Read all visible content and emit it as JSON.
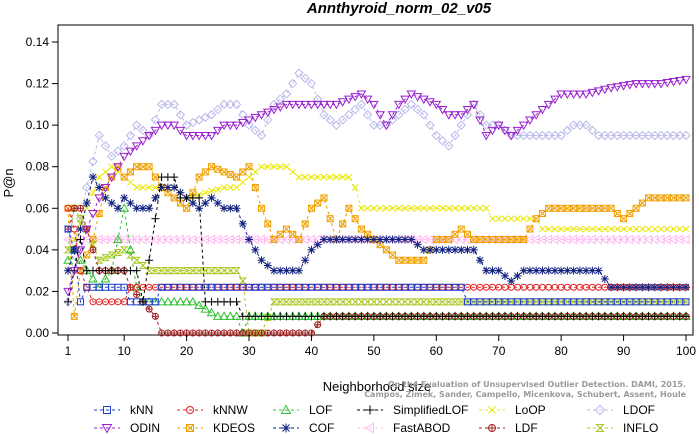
{
  "chart_data": {
    "type": "line",
    "title": "Annthyroid_norm_02_v05",
    "xlabel": "Neighborhood size",
    "ylabel": "P@n",
    "xlim": [
      0,
      100
    ],
    "ylim": [
      0,
      0.14
    ],
    "x_ticks": [
      1,
      10,
      20,
      30,
      40,
      50,
      60,
      70,
      80,
      90,
      100
    ],
    "y_ticks": [
      0.0,
      0.02,
      0.04,
      0.06,
      0.08,
      0.1,
      0.12,
      0.14
    ],
    "y_tick_labels": [
      "0.00",
      "0.02",
      "0.04",
      "0.06",
      "0.08",
      "0.10",
      "0.12",
      "0.14"
    ],
    "grid": false,
    "legend_position": "bottom",
    "credit": "Campos, Zimek, Sander, Campello, Micenkova, Schubert, Assent, Houle\nOn the Evaluation of Unsupervised Outlier Detection. DAMI, 2015.",
    "series": [
      {
        "name": "kNN",
        "color": "#1f3fd0",
        "marker": "square",
        "points": [
          [
            1,
            0.05
          ],
          [
            2,
            0.04
          ],
          [
            3,
            0.015
          ],
          [
            4,
            0.022
          ],
          [
            10,
            0.022
          ],
          [
            11,
            0.015
          ],
          [
            15,
            0.015
          ],
          [
            16,
            0.022
          ],
          [
            64,
            0.022
          ],
          [
            65,
            0.015
          ],
          [
            100,
            0.015
          ]
        ]
      },
      {
        "name": "kNNW",
        "color": "#e02020",
        "marker": "circle",
        "points": [
          [
            1,
            0.06
          ],
          [
            2,
            0.05
          ],
          [
            3,
            0.03
          ],
          [
            4,
            0.022
          ],
          [
            5,
            0.015
          ],
          [
            10,
            0.015
          ],
          [
            11,
            0.022
          ],
          [
            15,
            0.022
          ],
          [
            16,
            0.022
          ],
          [
            64,
            0.022
          ],
          [
            65,
            0.022
          ],
          [
            100,
            0.022
          ]
        ]
      },
      {
        "name": "LOF",
        "color": "#30c030",
        "marker": "triangle",
        "points": [
          [
            1,
            0.035
          ],
          [
            2,
            0.04
          ],
          [
            4,
            0.03
          ],
          [
            6,
            0.022
          ],
          [
            8,
            0.03
          ],
          [
            10,
            0.06
          ],
          [
            11,
            0.04
          ],
          [
            12,
            0.022
          ],
          [
            13,
            0.015
          ],
          [
            14,
            0.015
          ],
          [
            20,
            0.015
          ],
          [
            21,
            0.015
          ],
          [
            25,
            0.008
          ],
          [
            28,
            0.008
          ],
          [
            29,
            0.0
          ],
          [
            30,
            0.008
          ],
          [
            40,
            0.008
          ],
          [
            100,
            0.008
          ]
        ]
      },
      {
        "name": "SimplifiedLOF",
        "color": "#000000",
        "marker": "plus",
        "points": [
          [
            1,
            0.015
          ],
          [
            2,
            0.03
          ],
          [
            3,
            0.045
          ],
          [
            4,
            0.03
          ],
          [
            6,
            0.03
          ],
          [
            12,
            0.03
          ],
          [
            13,
            0.015
          ],
          [
            16,
            0.075
          ],
          [
            18,
            0.075
          ],
          [
            19,
            0.065
          ],
          [
            22,
            0.065
          ],
          [
            23,
            0.015
          ],
          [
            28,
            0.015
          ],
          [
            29,
            0.008
          ],
          [
            33,
            0.008
          ],
          [
            34,
            0.008
          ],
          [
            72,
            0.008
          ],
          [
            73,
            0.008
          ],
          [
            100,
            0.008
          ]
        ]
      },
      {
        "name": "LoOP",
        "color": "#e8e800",
        "marker": "x",
        "points": [
          [
            1,
            0.03
          ],
          [
            2,
            0.045
          ],
          [
            4,
            0.06
          ],
          [
            6,
            0.075
          ],
          [
            8,
            0.08
          ],
          [
            10,
            0.075
          ],
          [
            12,
            0.07
          ],
          [
            14,
            0.07
          ],
          [
            18,
            0.07
          ],
          [
            20,
            0.065
          ],
          [
            26,
            0.07
          ],
          [
            28,
            0.07
          ],
          [
            30,
            0.075
          ],
          [
            32,
            0.08
          ],
          [
            36,
            0.08
          ],
          [
            38,
            0.075
          ],
          [
            46,
            0.075
          ],
          [
            47,
            0.07
          ],
          [
            48,
            0.06
          ],
          [
            50,
            0.06
          ],
          [
            68,
            0.06
          ],
          [
            69,
            0.055
          ],
          [
            70,
            0.055
          ],
          [
            76,
            0.055
          ],
          [
            77,
            0.05
          ],
          [
            100,
            0.05
          ]
        ]
      },
      {
        "name": "LDOF",
        "color": "#b8b8ec",
        "marker": "diamond",
        "points": [
          [
            1,
            0.015
          ],
          [
            2,
            0.04
          ],
          [
            4,
            0.07
          ],
          [
            6,
            0.095
          ],
          [
            8,
            0.085
          ],
          [
            10,
            0.09
          ],
          [
            12,
            0.1
          ],
          [
            14,
            0.095
          ],
          [
            16,
            0.11
          ],
          [
            18,
            0.11
          ],
          [
            20,
            0.1
          ],
          [
            24,
            0.105
          ],
          [
            26,
            0.11
          ],
          [
            28,
            0.11
          ],
          [
            30,
            0.1
          ],
          [
            32,
            0.095
          ],
          [
            34,
            0.11
          ],
          [
            36,
            0.115
          ],
          [
            38,
            0.125
          ],
          [
            40,
            0.12
          ],
          [
            42,
            0.105
          ],
          [
            44,
            0.1
          ],
          [
            48,
            0.11
          ],
          [
            50,
            0.1
          ],
          [
            52,
            0.1
          ],
          [
            56,
            0.11
          ],
          [
            58,
            0.105
          ],
          [
            60,
            0.095
          ],
          [
            62,
            0.09
          ],
          [
            64,
            0.1
          ],
          [
            66,
            0.11
          ],
          [
            68,
            0.1
          ],
          [
            70,
            0.1
          ],
          [
            72,
            0.095
          ],
          [
            80,
            0.095
          ],
          [
            82,
            0.1
          ],
          [
            84,
            0.1
          ],
          [
            86,
            0.095
          ],
          [
            100,
            0.095
          ]
        ]
      },
      {
        "name": "ODIN",
        "color": "#9a20d0",
        "marker": "triangle-down",
        "points": [
          [
            1,
            0.02
          ],
          [
            2,
            0.03
          ],
          [
            4,
            0.05
          ],
          [
            6,
            0.065
          ],
          [
            8,
            0.075
          ],
          [
            10,
            0.085
          ],
          [
            12,
            0.09
          ],
          [
            14,
            0.095
          ],
          [
            16,
            0.1
          ],
          [
            18,
            0.1
          ],
          [
            20,
            0.095
          ],
          [
            24,
            0.095
          ],
          [
            26,
            0.1
          ],
          [
            28,
            0.1
          ],
          [
            32,
            0.105
          ],
          [
            36,
            0.11
          ],
          [
            40,
            0.11
          ],
          [
            44,
            0.11
          ],
          [
            48,
            0.115
          ],
          [
            50,
            0.11
          ],
          [
            52,
            0.1
          ],
          [
            54,
            0.11
          ],
          [
            56,
            0.115
          ],
          [
            60,
            0.11
          ],
          [
            62,
            0.105
          ],
          [
            64,
            0.105
          ],
          [
            66,
            0.11
          ],
          [
            68,
            0.095
          ],
          [
            70,
            0.1
          ],
          [
            72,
            0.095
          ],
          [
            74,
            0.1
          ],
          [
            78,
            0.11
          ],
          [
            80,
            0.115
          ],
          [
            84,
            0.115
          ],
          [
            88,
            0.118
          ],
          [
            92,
            0.12
          ],
          [
            96,
            0.12
          ],
          [
            100,
            0.122
          ]
        ]
      },
      {
        "name": "KDEOS",
        "color": "#f0a000",
        "marker": "square-x",
        "points": [
          [
            1,
            0.06
          ],
          [
            2,
            0.008
          ],
          [
            3,
            0.03
          ],
          [
            5,
            0.045
          ],
          [
            7,
            0.07
          ],
          [
            9,
            0.08
          ],
          [
            10,
            0.075
          ],
          [
            12,
            0.08
          ],
          [
            14,
            0.08
          ],
          [
            16,
            0.07
          ],
          [
            18,
            0.065
          ],
          [
            20,
            0.06
          ],
          [
            22,
            0.075
          ],
          [
            24,
            0.08
          ],
          [
            28,
            0.075
          ],
          [
            30,
            0.08
          ],
          [
            32,
            0.06
          ],
          [
            34,
            0.045
          ],
          [
            36,
            0.05
          ],
          [
            38,
            0.045
          ],
          [
            40,
            0.06
          ],
          [
            42,
            0.065
          ],
          [
            44,
            0.045
          ],
          [
            46,
            0.06
          ],
          [
            48,
            0.05
          ],
          [
            50,
            0.045
          ],
          [
            52,
            0.04
          ],
          [
            54,
            0.035
          ],
          [
            58,
            0.035
          ],
          [
            60,
            0.045
          ],
          [
            62,
            0.045
          ],
          [
            64,
            0.05
          ],
          [
            66,
            0.045
          ],
          [
            74,
            0.045
          ],
          [
            76,
            0.055
          ],
          [
            78,
            0.06
          ],
          [
            88,
            0.06
          ],
          [
            90,
            0.055
          ],
          [
            92,
            0.06
          ],
          [
            94,
            0.065
          ],
          [
            98,
            0.065
          ],
          [
            100,
            0.065
          ]
        ]
      },
      {
        "name": "COF",
        "color": "#102080",
        "marker": "star",
        "points": [
          [
            1,
            0.03
          ],
          [
            2,
            0.04
          ],
          [
            3,
            0.05
          ],
          [
            5,
            0.075
          ],
          [
            7,
            0.065
          ],
          [
            9,
            0.06
          ],
          [
            10,
            0.065
          ],
          [
            12,
            0.06
          ],
          [
            14,
            0.06
          ],
          [
            16,
            0.07
          ],
          [
            18,
            0.07
          ],
          [
            20,
            0.065
          ],
          [
            22,
            0.06
          ],
          [
            24,
            0.065
          ],
          [
            26,
            0.06
          ],
          [
            28,
            0.06
          ],
          [
            30,
            0.045
          ],
          [
            32,
            0.035
          ],
          [
            34,
            0.03
          ],
          [
            38,
            0.03
          ],
          [
            40,
            0.04
          ],
          [
            42,
            0.045
          ],
          [
            56,
            0.045
          ],
          [
            58,
            0.04
          ],
          [
            66,
            0.04
          ],
          [
            68,
            0.03
          ],
          [
            70,
            0.03
          ],
          [
            72,
            0.025
          ],
          [
            74,
            0.03
          ],
          [
            86,
            0.03
          ],
          [
            88,
            0.022
          ],
          [
            100,
            0.022
          ]
        ]
      },
      {
        "name": "FastABOD",
        "color": "#ffb8f0",
        "marker": "triangle-left",
        "points": [
          [
            1,
            0.045
          ],
          [
            4,
            0.045
          ],
          [
            100,
            0.045
          ]
        ]
      },
      {
        "name": "LDF",
        "color": "#a02020",
        "marker": "circle-plus",
        "points": [
          [
            1,
            0.05
          ],
          [
            2,
            0.06
          ],
          [
            3,
            0.06
          ],
          [
            5,
            0.04
          ],
          [
            6,
            0.03
          ],
          [
            10,
            0.03
          ],
          [
            11,
            0.022
          ],
          [
            13,
            0.015
          ],
          [
            15,
            0.008
          ],
          [
            16,
            0.0
          ],
          [
            22,
            0.0
          ],
          [
            26,
            0.0
          ],
          [
            30,
            0.0
          ],
          [
            34,
            0.0
          ],
          [
            40,
            0.0
          ],
          [
            42,
            0.008
          ],
          [
            100,
            0.008
          ]
        ]
      },
      {
        "name": "INFLO",
        "color": "#a8c820",
        "marker": "hourglass",
        "points": [
          [
            1,
            0.04
          ],
          [
            2,
            0.06
          ],
          [
            4,
            0.05
          ],
          [
            6,
            0.035
          ],
          [
            10,
            0.04
          ],
          [
            12,
            0.035
          ],
          [
            14,
            0.03
          ],
          [
            16,
            0.03
          ],
          [
            28,
            0.03
          ],
          [
            29,
            0.025
          ],
          [
            30,
            0.0
          ],
          [
            32,
            0.0
          ],
          [
            34,
            0.015
          ],
          [
            60,
            0.015
          ],
          [
            100,
            0.015
          ]
        ]
      }
    ]
  }
}
